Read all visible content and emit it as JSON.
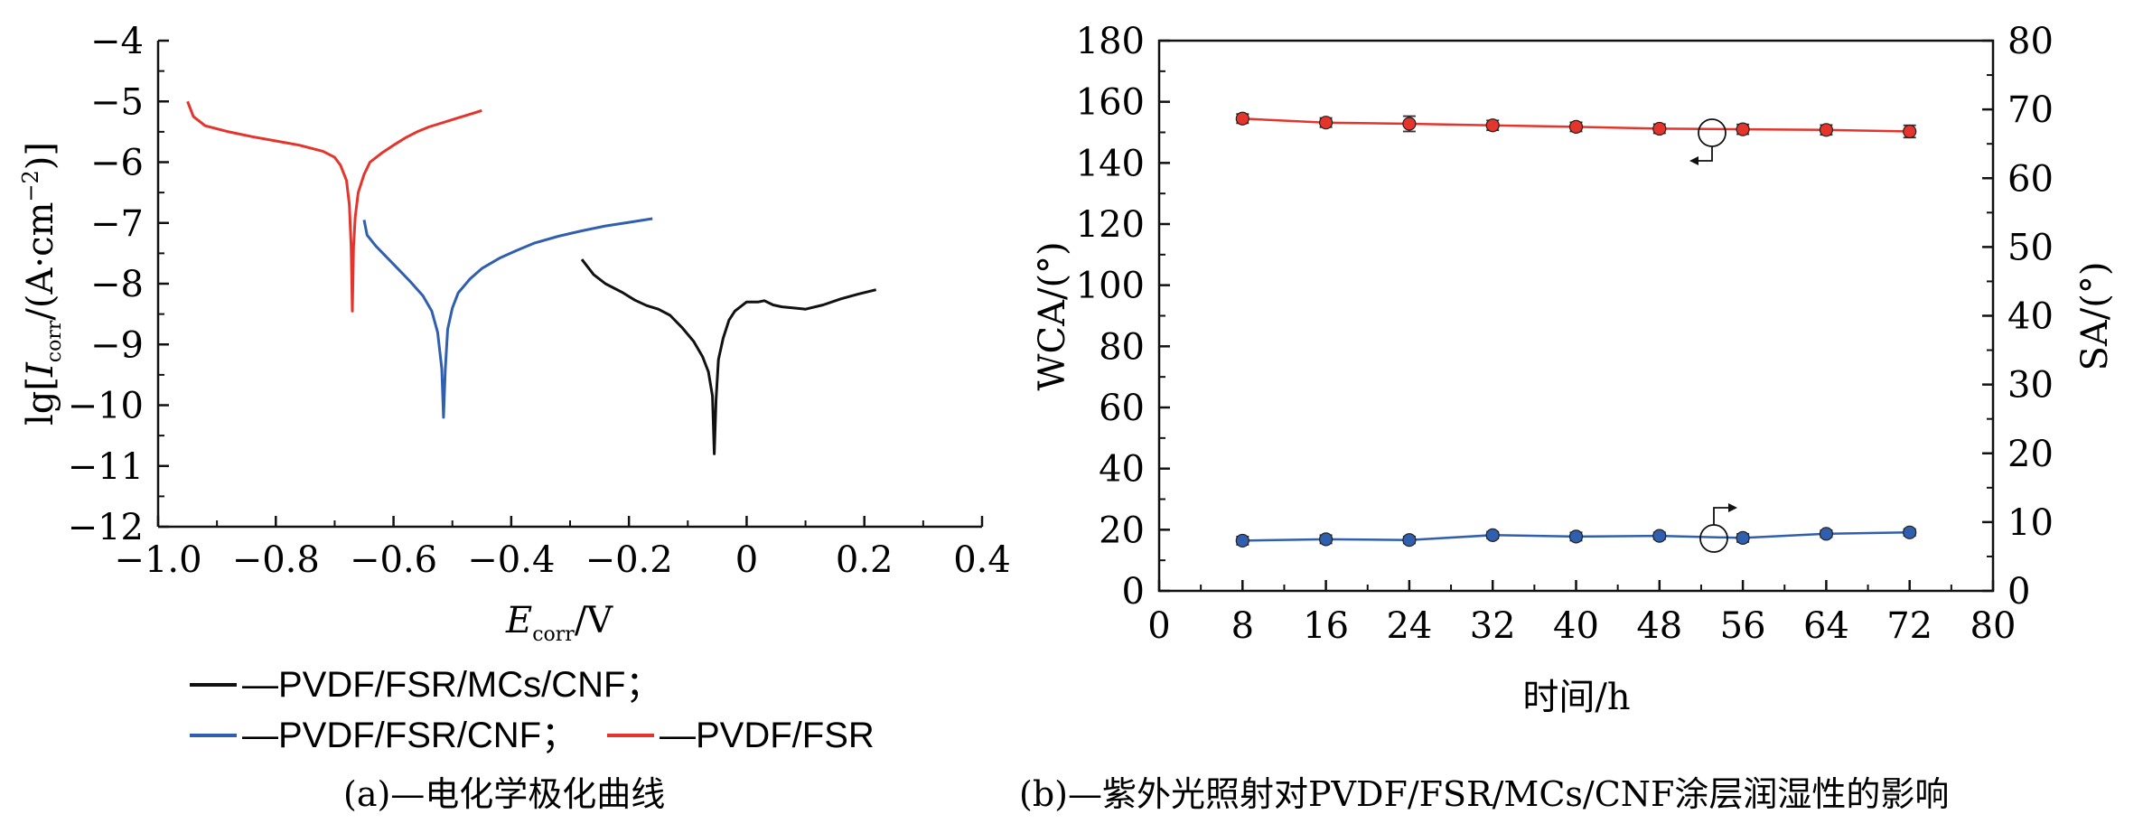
{
  "chart_data": [
    {
      "type": "line",
      "caption": "(a)—电化学极化曲线",
      "xlabel_main": "E",
      "xlabel_sub": "corr",
      "xlabel_unit": "/V",
      "ylabel_prefix": "lg[",
      "ylabel_main": "I",
      "ylabel_sub": "corr",
      "ylabel_unit": "/(A·cm",
      "ylabel_sup": "−2",
      "ylabel_suffix": ")]",
      "xlim": [
        -1.0,
        0.4
      ],
      "ylim": [
        -12,
        -4
      ],
      "x_ticks": [
        "−1.0",
        "−0.8",
        "−0.6",
        "−0.4",
        "−0.2",
        "0",
        "0.2",
        "0.4"
      ],
      "y_ticks": [
        "−4",
        "−5",
        "−6",
        "−7",
        "−8",
        "−9",
        "−10",
        "−11",
        "−12"
      ],
      "legend": [
        {
          "label": "—PVDF/FSR/MCs/CNF；",
          "color": "#111111"
        },
        {
          "label": "—PVDF/FSR/CNF；",
          "color": "#2f5fae"
        },
        {
          "label": "—PVDF/FSR",
          "color": "#e5342b"
        }
      ],
      "series": [
        {
          "name": "PVDF/FSR",
          "color": "#e5342b",
          "x": [
            -0.95,
            -0.94,
            -0.92,
            -0.88,
            -0.84,
            -0.8,
            -0.76,
            -0.72,
            -0.7,
            -0.69,
            -0.68,
            -0.675,
            -0.672,
            -0.67,
            -0.668,
            -0.665,
            -0.66,
            -0.65,
            -0.64,
            -0.62,
            -0.6,
            -0.58,
            -0.56,
            -0.54,
            -0.52,
            -0.5,
            -0.48,
            -0.46,
            -0.45
          ],
          "y": [
            -5.0,
            -5.25,
            -5.4,
            -5.5,
            -5.58,
            -5.65,
            -5.72,
            -5.82,
            -5.92,
            -6.05,
            -6.3,
            -6.7,
            -7.4,
            -8.45,
            -7.4,
            -6.9,
            -6.5,
            -6.2,
            -6.0,
            -5.85,
            -5.72,
            -5.6,
            -5.5,
            -5.42,
            -5.36,
            -5.3,
            -5.24,
            -5.18,
            -5.15
          ]
        },
        {
          "name": "PVDF/FSR/CNF",
          "color": "#2f5fae",
          "x": [
            -0.65,
            -0.645,
            -0.63,
            -0.61,
            -0.59,
            -0.57,
            -0.55,
            -0.535,
            -0.525,
            -0.518,
            -0.515,
            -0.512,
            -0.508,
            -0.5,
            -0.49,
            -0.47,
            -0.45,
            -0.42,
            -0.39,
            -0.36,
            -0.32,
            -0.28,
            -0.24,
            -0.2,
            -0.16
          ],
          "y": [
            -6.95,
            -7.2,
            -7.38,
            -7.58,
            -7.78,
            -7.98,
            -8.2,
            -8.45,
            -8.8,
            -9.4,
            -10.2,
            -9.4,
            -8.75,
            -8.4,
            -8.15,
            -7.92,
            -7.75,
            -7.58,
            -7.45,
            -7.33,
            -7.22,
            -7.13,
            -7.05,
            -6.99,
            -6.93
          ]
        },
        {
          "name": "PVDF/FSR/MCs/CNF",
          "color": "#111111",
          "x": [
            -0.28,
            -0.26,
            -0.24,
            -0.21,
            -0.19,
            -0.17,
            -0.15,
            -0.13,
            -0.11,
            -0.09,
            -0.075,
            -0.065,
            -0.058,
            -0.055,
            -0.052,
            -0.048,
            -0.04,
            -0.03,
            -0.02,
            0.0,
            0.02,
            0.03,
            0.045,
            0.06,
            0.08,
            0.1,
            0.13,
            0.16,
            0.19,
            0.22
          ],
          "y": [
            -7.6,
            -7.85,
            -8.0,
            -8.15,
            -8.27,
            -8.36,
            -8.42,
            -8.52,
            -8.72,
            -8.95,
            -9.2,
            -9.45,
            -9.85,
            -10.8,
            -9.9,
            -9.25,
            -8.9,
            -8.6,
            -8.45,
            -8.3,
            -8.3,
            -8.28,
            -8.35,
            -8.38,
            -8.4,
            -8.42,
            -8.35,
            -8.25,
            -8.17,
            -8.1
          ]
        }
      ]
    },
    {
      "type": "line",
      "caption": "(b)—紫外光照射对PVDF/FSR/MCs/CNF涂层润湿性的影响",
      "xlabel": "时间/h",
      "ylabel_left": "WCA/(°)",
      "ylabel_right": "SA/(°)",
      "xlim": [
        0,
        80
      ],
      "ylim_left": [
        0,
        180
      ],
      "ylim_right": [
        0,
        80
      ],
      "x_ticks": [
        "0",
        "8",
        "16",
        "24",
        "32",
        "40",
        "48",
        "56",
        "64",
        "72",
        "80"
      ],
      "y_ticks_left": [
        "0",
        "20",
        "40",
        "60",
        "80",
        "100",
        "120",
        "140",
        "160",
        "180"
      ],
      "y_ticks_right": [
        "0",
        "10",
        "20",
        "30",
        "40",
        "50",
        "60",
        "70",
        "80"
      ],
      "series": [
        {
          "name": "WCA",
          "axis": "left",
          "color": "#e5342b",
          "x": [
            8,
            16,
            24,
            32,
            40,
            48,
            56,
            64,
            72
          ],
          "y": [
            154.5,
            153.2,
            152.8,
            152.3,
            151.8,
            151.2,
            151.0,
            150.8,
            150.3
          ],
          "err": [
            1.5,
            1.5,
            2.5,
            1.6,
            1.5,
            1.5,
            1.6,
            1.6,
            2.0
          ]
        },
        {
          "name": "SA",
          "axis": "right",
          "color": "#2f5fae",
          "x": [
            8,
            16,
            24,
            32,
            40,
            48,
            56,
            64,
            72
          ],
          "y": [
            7.3,
            7.5,
            7.4,
            8.1,
            7.9,
            8.0,
            7.7,
            8.3,
            8.5
          ],
          "err": [
            0.6,
            0.6,
            0.5,
            0.5,
            0.6,
            0.5,
            0.6,
            0.5,
            0.5
          ]
        }
      ]
    }
  ]
}
